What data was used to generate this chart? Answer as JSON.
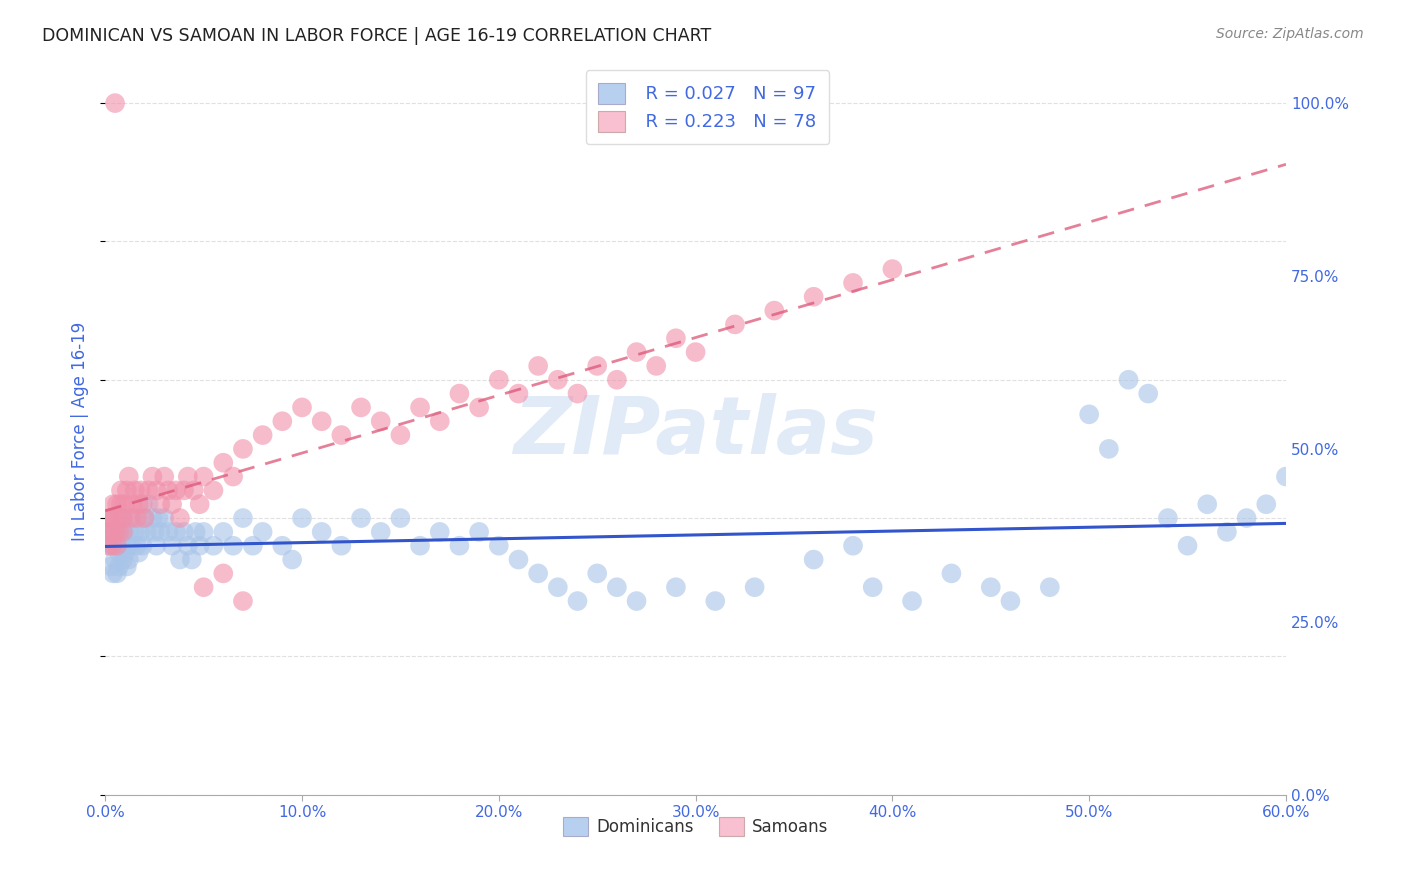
{
  "title": "DOMINICAN VS SAMOAN IN LABOR FORCE | AGE 16-19 CORRELATION CHART",
  "source": "Source: ZipAtlas.com",
  "ylabel_label": "In Labor Force | Age 16-19",
  "watermark_text": "ZIPatlas",
  "legend_entries": [
    {
      "label": "Dominicans",
      "R": "0.027",
      "N": "97",
      "scatter_color": "#a8c4e8",
      "legend_color": "#b8d0f0"
    },
    {
      "label": "Samoans",
      "R": "0.223",
      "N": "78",
      "scatter_color": "#f090aa",
      "legend_color": "#f8c0d0"
    }
  ],
  "dom_line_color": "#3355cc",
  "dom_line_style": "solid",
  "sam_line_color": "#dd5577",
  "sam_line_style": "dashed",
  "dominicans_x": [
    0.001,
    0.002,
    0.002,
    0.003,
    0.003,
    0.004,
    0.004,
    0.005,
    0.005,
    0.006,
    0.006,
    0.007,
    0.007,
    0.008,
    0.008,
    0.009,
    0.009,
    0.01,
    0.01,
    0.011,
    0.011,
    0.012,
    0.012,
    0.013,
    0.014,
    0.015,
    0.016,
    0.017,
    0.018,
    0.019,
    0.02,
    0.021,
    0.022,
    0.024,
    0.025,
    0.026,
    0.027,
    0.028,
    0.03,
    0.032,
    0.034,
    0.036,
    0.038,
    0.04,
    0.042,
    0.044,
    0.046,
    0.048,
    0.05,
    0.055,
    0.06,
    0.065,
    0.07,
    0.075,
    0.08,
    0.09,
    0.095,
    0.1,
    0.11,
    0.12,
    0.13,
    0.14,
    0.15,
    0.16,
    0.17,
    0.18,
    0.19,
    0.2,
    0.21,
    0.22,
    0.23,
    0.24,
    0.25,
    0.26,
    0.27,
    0.29,
    0.31,
    0.33,
    0.36,
    0.38,
    0.39,
    0.41,
    0.43,
    0.45,
    0.46,
    0.48,
    0.5,
    0.51,
    0.52,
    0.53,
    0.54,
    0.55,
    0.56,
    0.57,
    0.58,
    0.59,
    0.6
  ],
  "dominicans_y": [
    0.38,
    0.4,
    0.36,
    0.37,
    0.33,
    0.36,
    0.32,
    0.38,
    0.34,
    0.36,
    0.32,
    0.35,
    0.33,
    0.38,
    0.36,
    0.34,
    0.4,
    0.38,
    0.35,
    0.33,
    0.36,
    0.34,
    0.38,
    0.36,
    0.4,
    0.38,
    0.36,
    0.35,
    0.38,
    0.36,
    0.4,
    0.38,
    0.42,
    0.4,
    0.38,
    0.36,
    0.4,
    0.38,
    0.4,
    0.38,
    0.36,
    0.38,
    0.34,
    0.38,
    0.36,
    0.34,
    0.38,
    0.36,
    0.38,
    0.36,
    0.38,
    0.36,
    0.4,
    0.36,
    0.38,
    0.36,
    0.34,
    0.4,
    0.38,
    0.36,
    0.4,
    0.38,
    0.4,
    0.36,
    0.38,
    0.36,
    0.38,
    0.36,
    0.34,
    0.32,
    0.3,
    0.28,
    0.32,
    0.3,
    0.28,
    0.3,
    0.28,
    0.3,
    0.34,
    0.36,
    0.3,
    0.28,
    0.32,
    0.3,
    0.28,
    0.3,
    0.55,
    0.5,
    0.6,
    0.58,
    0.4,
    0.36,
    0.42,
    0.38,
    0.4,
    0.42,
    0.46
  ],
  "samoans_x": [
    0.001,
    0.002,
    0.002,
    0.003,
    0.003,
    0.004,
    0.004,
    0.005,
    0.005,
    0.006,
    0.006,
    0.007,
    0.007,
    0.008,
    0.008,
    0.009,
    0.009,
    0.01,
    0.011,
    0.012,
    0.013,
    0.014,
    0.015,
    0.016,
    0.017,
    0.018,
    0.019,
    0.02,
    0.022,
    0.024,
    0.026,
    0.028,
    0.03,
    0.032,
    0.034,
    0.036,
    0.038,
    0.04,
    0.042,
    0.045,
    0.048,
    0.05,
    0.055,
    0.06,
    0.065,
    0.07,
    0.08,
    0.09,
    0.1,
    0.11,
    0.12,
    0.13,
    0.14,
    0.15,
    0.16,
    0.17,
    0.18,
    0.19,
    0.2,
    0.21,
    0.22,
    0.23,
    0.24,
    0.25,
    0.26,
    0.27,
    0.28,
    0.29,
    0.3,
    0.32,
    0.34,
    0.36,
    0.38,
    0.4,
    0.05,
    0.06,
    0.07,
    0.005
  ],
  "samoans_y": [
    0.38,
    0.4,
    0.36,
    0.4,
    0.38,
    0.42,
    0.36,
    0.38,
    0.4,
    0.42,
    0.36,
    0.38,
    0.4,
    0.44,
    0.42,
    0.4,
    0.38,
    0.42,
    0.44,
    0.46,
    0.4,
    0.42,
    0.44,
    0.4,
    0.42,
    0.44,
    0.42,
    0.4,
    0.44,
    0.46,
    0.44,
    0.42,
    0.46,
    0.44,
    0.42,
    0.44,
    0.4,
    0.44,
    0.46,
    0.44,
    0.42,
    0.46,
    0.44,
    0.48,
    0.46,
    0.5,
    0.52,
    0.54,
    0.56,
    0.54,
    0.52,
    0.56,
    0.54,
    0.52,
    0.56,
    0.54,
    0.58,
    0.56,
    0.6,
    0.58,
    0.62,
    0.6,
    0.58,
    0.62,
    0.6,
    0.64,
    0.62,
    0.66,
    0.64,
    0.68,
    0.7,
    0.72,
    0.74,
    0.76,
    0.3,
    0.32,
    0.28,
    1.0
  ],
  "xlim": [
    0.0,
    0.6
  ],
  "ylim": [
    0.0,
    1.05
  ],
  "xticks": [
    0.0,
    0.1,
    0.2,
    0.3,
    0.4,
    0.5,
    0.6
  ],
  "yticks_right": [
    0.0,
    0.25,
    0.5,
    0.75,
    1.0
  ],
  "background_color": "#ffffff",
  "grid_color": "#dddddd",
  "title_color": "#222222",
  "source_color": "#888888",
  "axis_color": "#4169e1",
  "tick_color": "#4169e1"
}
